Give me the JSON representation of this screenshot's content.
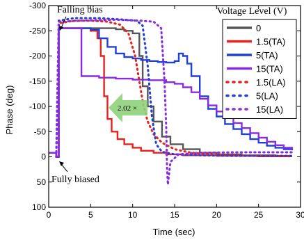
{
  "chart_data": {
    "type": "line",
    "xlabel": "Time (sec)",
    "ylabel": "Phase (deg)",
    "xlim": [
      0,
      30
    ],
    "ylim": [
      100,
      -300
    ],
    "x_ticks": [
      0,
      5,
      10,
      15,
      20,
      25,
      30
    ],
    "y_ticks": [
      -300,
      -250,
      -200,
      -150,
      -100,
      -50,
      0,
      50,
      100
    ],
    "legend_title": "Voltage Level (V)",
    "legend_position": "top-right",
    "annotations": {
      "falling_bias": "Falling bias",
      "fully_biased": "Fully biased",
      "speedup": "2.02 ×"
    },
    "series": [
      {
        "name": "0",
        "color": "#555555",
        "style": "solid",
        "points": [
          [
            0,
            -8
          ],
          [
            0.9,
            0
          ],
          [
            1.2,
            -255
          ],
          [
            2,
            -255
          ],
          [
            5,
            -255
          ],
          [
            7,
            -255
          ],
          [
            8,
            -253
          ],
          [
            9,
            -250
          ],
          [
            10,
            -245
          ],
          [
            10.8,
            -200
          ],
          [
            11.2,
            -140
          ],
          [
            11.8,
            -100
          ],
          [
            12.5,
            -70
          ],
          [
            13.5,
            -40
          ],
          [
            14.5,
            -25
          ],
          [
            16,
            -15
          ],
          [
            18,
            -8
          ],
          [
            20,
            -5
          ],
          [
            23,
            -3
          ],
          [
            27,
            -2
          ],
          [
            29,
            -2
          ]
        ]
      },
      {
        "name": "1.5(TA)",
        "color": "#e8211f",
        "style": "solid",
        "points": [
          [
            0,
            -8
          ],
          [
            0.9,
            0
          ],
          [
            1.2,
            -255
          ],
          [
            2,
            -255
          ],
          [
            4,
            -255
          ],
          [
            5,
            -250
          ],
          [
            5.8,
            -235
          ],
          [
            6.2,
            -200
          ],
          [
            6.6,
            -120
          ],
          [
            7,
            -75
          ],
          [
            7.5,
            -50
          ],
          [
            8.2,
            -35
          ],
          [
            9,
            -25
          ],
          [
            10,
            -18
          ],
          [
            11,
            -12
          ],
          [
            12.5,
            -8
          ],
          [
            14,
            -5
          ],
          [
            16,
            -3
          ],
          [
            20,
            -2
          ],
          [
            25,
            -1
          ],
          [
            29,
            -1
          ]
        ]
      },
      {
        "name": "5(TA)",
        "color": "#1f3fd8",
        "style": "solid",
        "points": [
          [
            0,
            -8
          ],
          [
            0.9,
            0
          ],
          [
            1.2,
            -255
          ],
          [
            3,
            -255
          ],
          [
            5,
            -252
          ],
          [
            6,
            -235
          ],
          [
            7,
            -218
          ],
          [
            8,
            -205
          ],
          [
            9,
            -198
          ],
          [
            10,
            -195
          ],
          [
            11,
            -192
          ],
          [
            12,
            -190
          ],
          [
            13,
            -188
          ],
          [
            14,
            -187
          ],
          [
            15,
            -190
          ],
          [
            15.5,
            -205
          ],
          [
            16,
            -200
          ],
          [
            16.5,
            -185
          ],
          [
            17,
            -160
          ],
          [
            18,
            -120
          ],
          [
            19,
            -95
          ],
          [
            20,
            -80
          ],
          [
            21,
            -65
          ],
          [
            22,
            -55
          ],
          [
            23,
            -45
          ],
          [
            24,
            -35
          ],
          [
            25,
            -28
          ],
          [
            26,
            -22
          ],
          [
            27,
            -18
          ],
          [
            28,
            -15
          ],
          [
            29,
            -13
          ]
        ]
      },
      {
        "name": "15(TA)",
        "color": "#8a2be2",
        "style": "solid",
        "points": [
          [
            0,
            -8
          ],
          [
            0.9,
            0
          ],
          [
            1.2,
            -255
          ],
          [
            3,
            -255
          ],
          [
            3.7,
            -255
          ],
          [
            3.9,
            -160
          ],
          [
            4.5,
            -160
          ],
          [
            6,
            -157
          ],
          [
            8,
            -155
          ],
          [
            10,
            -153
          ],
          [
            12,
            -152
          ],
          [
            14,
            -148
          ],
          [
            15,
            -145
          ],
          [
            16,
            -138
          ],
          [
            17,
            -128
          ],
          [
            18,
            -115
          ],
          [
            19,
            -102
          ],
          [
            20,
            -90
          ],
          [
            21,
            -78
          ],
          [
            22,
            -67
          ],
          [
            23,
            -57
          ],
          [
            24,
            -47
          ],
          [
            25,
            -38
          ],
          [
            26,
            -30
          ],
          [
            27,
            -23
          ],
          [
            28,
            -18
          ],
          [
            29,
            -14
          ]
        ]
      },
      {
        "name": "1.5(LA)",
        "color": "#e8211f",
        "style": "dotted",
        "points": [
          [
            0.9,
            0
          ],
          [
            1.2,
            -265
          ],
          [
            3,
            -270
          ],
          [
            5,
            -270
          ],
          [
            7,
            -268
          ],
          [
            8.5,
            -262
          ],
          [
            9.5,
            -245
          ],
          [
            10.3,
            -200
          ],
          [
            10.8,
            -150
          ],
          [
            11.3,
            -100
          ],
          [
            11.8,
            -70
          ],
          [
            12.5,
            -45
          ],
          [
            13.5,
            -28
          ],
          [
            15,
            -15
          ],
          [
            17,
            -8
          ],
          [
            20,
            -4
          ],
          [
            24,
            -2
          ],
          [
            29,
            -1
          ]
        ]
      },
      {
        "name": "5(LA)",
        "color": "#1f3fd8",
        "style": "dotted",
        "points": [
          [
            0.9,
            0
          ],
          [
            1.2,
            -270
          ],
          [
            3,
            -275
          ],
          [
            6,
            -275
          ],
          [
            9,
            -272
          ],
          [
            10.5,
            -270
          ],
          [
            11.2,
            -260
          ],
          [
            11.8,
            -180
          ],
          [
            12.3,
            -80
          ],
          [
            12.8,
            -25
          ],
          [
            13.5,
            -10
          ],
          [
            15,
            -5
          ],
          [
            18,
            -3
          ],
          [
            22,
            -2
          ],
          [
            26,
            -2
          ],
          [
            29,
            -2
          ]
        ]
      },
      {
        "name": "15(LA)",
        "color": "#8a2be2",
        "style": "dotted",
        "points": [
          [
            0.9,
            0
          ],
          [
            1.2,
            -268
          ],
          [
            4,
            -270
          ],
          [
            8,
            -272
          ],
          [
            11,
            -270
          ],
          [
            12.5,
            -268
          ],
          [
            13.4,
            -255
          ],
          [
            13.8,
            -150
          ],
          [
            14,
            -60
          ],
          [
            14.1,
            20
          ],
          [
            14.2,
            55
          ],
          [
            14.5,
            10
          ],
          [
            15.5,
            -5
          ],
          [
            18,
            -8
          ],
          [
            22,
            -9
          ],
          [
            26,
            -9
          ],
          [
            29,
            -9
          ]
        ]
      }
    ]
  }
}
